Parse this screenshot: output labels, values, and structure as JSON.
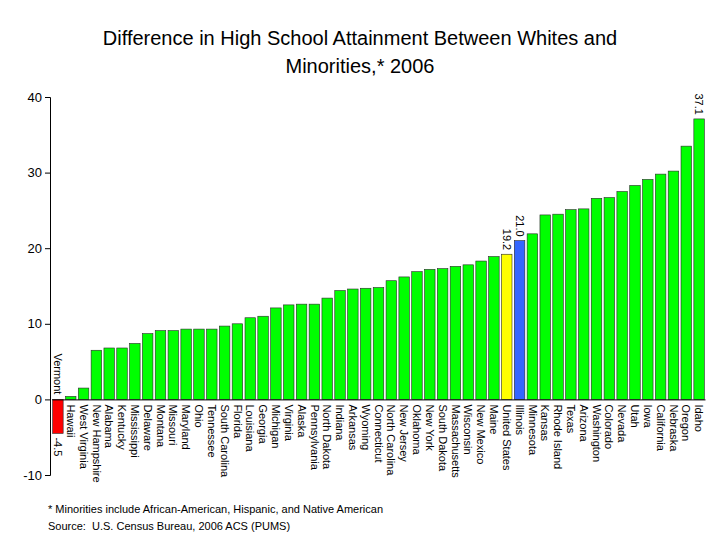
{
  "chart_data": {
    "type": "bar",
    "title": "Difference in High School Attainment Between Whites and Minorities,* 2006",
    "footnote": "* Minorities include African-American, Hispanic, and Native American",
    "source": "Source:  U.S. Census Bureau, 2006 ACS (PUMS)",
    "categories": [
      "Vermont",
      "Hawaii",
      "West Virginia",
      "New Hampshire",
      "Alabama",
      "Kentucky",
      "Mississippi",
      "Delaware",
      "Montana",
      "Missouri",
      "Maryland",
      "Ohio",
      "Tennessee",
      "South Carolina",
      "Florida",
      "Louisiana",
      "Georgia",
      "Michigan",
      "Virginia",
      "Alaska",
      "Pennsylvania",
      "North Dakota",
      "Indiana",
      "Arkansas",
      "Wyoming",
      "Connecticut",
      "North Carolina",
      "New Jersey",
      "Oklahoma",
      "New York",
      "South Dakota",
      "Massachusetts",
      "Wisconsin",
      "New Mexico",
      "Maine",
      "United States",
      "Illinois",
      "Minnesota",
      "Kansas",
      "Rhode Island",
      "Texas",
      "Arizona",
      "Washington",
      "Colorado",
      "Nevada",
      "Utah",
      "Iowa",
      "California",
      "Nebraska",
      "Oregon",
      "Idaho"
    ],
    "values": [
      -4.5,
      0.4,
      1.5,
      6.5,
      6.8,
      6.8,
      7.4,
      8.7,
      9.1,
      9.1,
      9.3,
      9.3,
      9.3,
      9.7,
      10.0,
      10.8,
      11.0,
      12.1,
      12.5,
      12.6,
      12.6,
      13.4,
      14.4,
      14.6,
      14.7,
      14.8,
      15.7,
      16.2,
      16.9,
      17.2,
      17.3,
      17.6,
      17.8,
      18.3,
      18.9,
      19.2,
      21.0,
      21.9,
      24.4,
      24.5,
      25.1,
      25.2,
      26.6,
      26.7,
      27.5,
      28.3,
      29.1,
      29.8,
      30.2,
      33.5,
      37.1
    ],
    "value_labels": [
      "-4.5",
      null,
      null,
      null,
      null,
      null,
      null,
      null,
      null,
      null,
      null,
      null,
      null,
      null,
      null,
      null,
      null,
      null,
      null,
      null,
      null,
      null,
      null,
      null,
      null,
      null,
      null,
      null,
      null,
      null,
      null,
      null,
      null,
      null,
      null,
      "19.2",
      "21.0",
      null,
      null,
      null,
      null,
      null,
      null,
      null,
      null,
      null,
      null,
      null,
      null,
      null,
      "37.1"
    ],
    "data_labels": true,
    "colors": [
      "#ff0000",
      "#00ff00",
      "#00ff00",
      "#00ff00",
      "#00ff00",
      "#00ff00",
      "#00ff00",
      "#00ff00",
      "#00ff00",
      "#00ff00",
      "#00ff00",
      "#00ff00",
      "#00ff00",
      "#00ff00",
      "#00ff00",
      "#00ff00",
      "#00ff00",
      "#00ff00",
      "#00ff00",
      "#00ff00",
      "#00ff00",
      "#00ff00",
      "#00ff00",
      "#00ff00",
      "#00ff00",
      "#00ff00",
      "#00ff00",
      "#00ff00",
      "#00ff00",
      "#00ff00",
      "#00ff00",
      "#00ff00",
      "#00ff00",
      "#00ff00",
      "#00ff00",
      "#ffff00",
      "#3366ff",
      "#00ff00",
      "#00ff00",
      "#00ff00",
      "#00ff00",
      "#00ff00",
      "#00ff00",
      "#00ff00",
      "#00ff00",
      "#00ff00",
      "#00ff00",
      "#00ff00",
      "#00ff00",
      "#00ff00",
      "#00ff00"
    ],
    "ylim": [
      -10,
      40
    ],
    "yticks": [
      -10,
      0,
      10,
      20,
      30,
      40
    ],
    "grid": false
  }
}
